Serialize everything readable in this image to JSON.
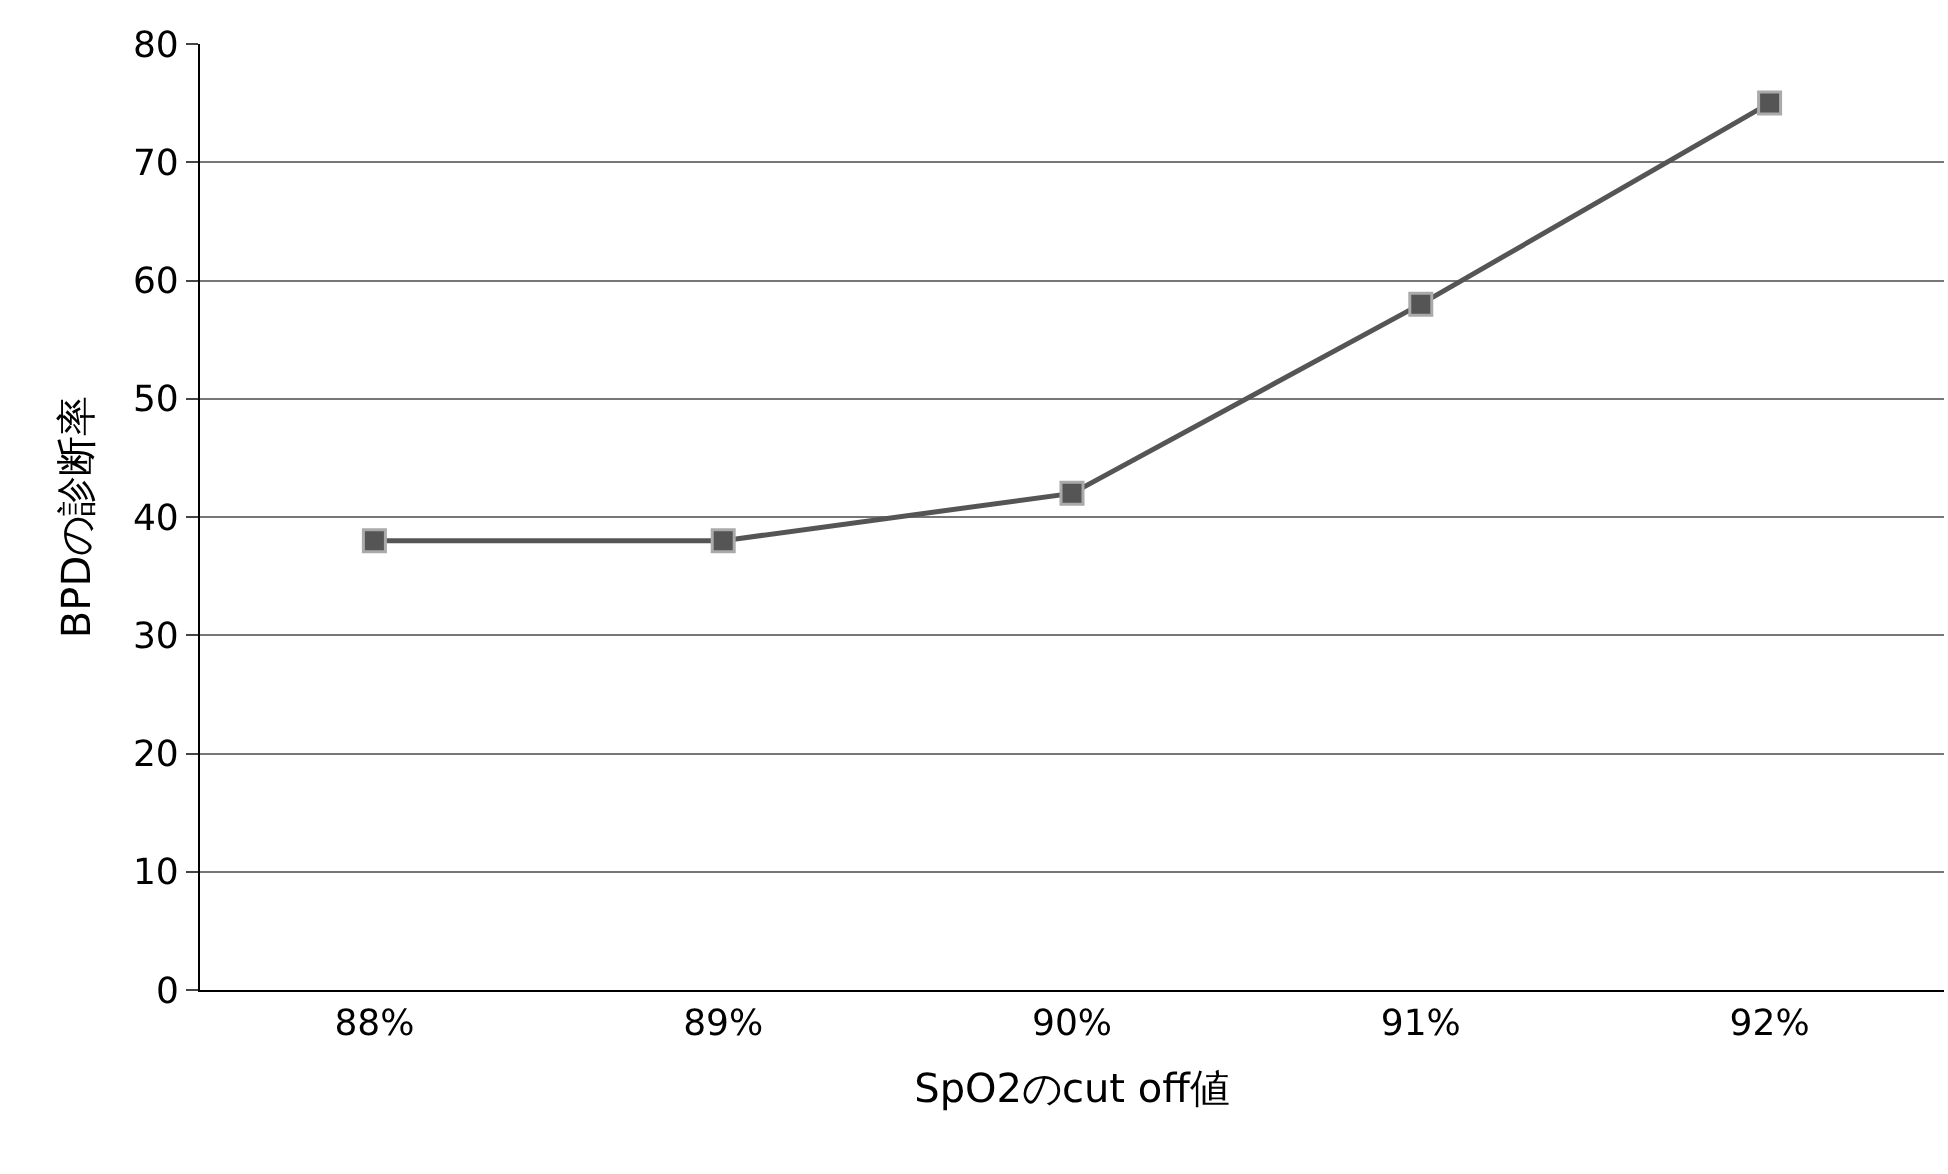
{
  "chart_data": {
    "type": "line",
    "xlabel": "SpO2のcut off値",
    "ylabel": "BPDの診断率",
    "categories": [
      "88%",
      "89%",
      "90%",
      "91%",
      "92%"
    ],
    "series": [
      {
        "color": "#555555",
        "values": [
          38,
          38,
          42,
          58,
          75
        ]
      }
    ],
    "ylim": [
      0,
      80
    ],
    "yticks": [
      0,
      10,
      20,
      30,
      40,
      50,
      60,
      70,
      80
    ],
    "grid": "y",
    "legend": false,
    "marker": "square",
    "line_style": "solid"
  }
}
